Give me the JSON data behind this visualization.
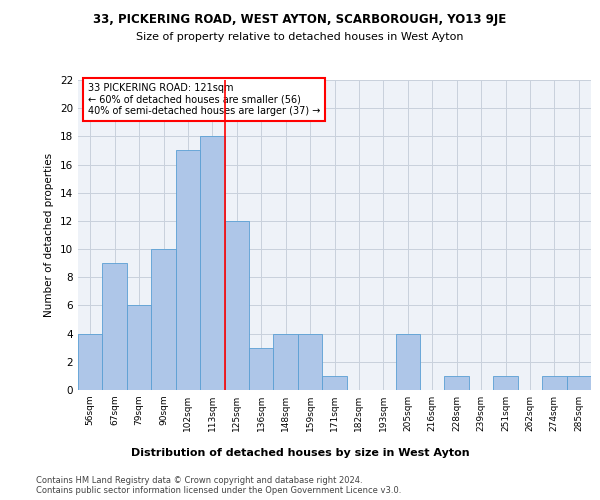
{
  "title1": "33, PICKERING ROAD, WEST AYTON, SCARBOROUGH, YO13 9JE",
  "title2": "Size of property relative to detached houses in West Ayton",
  "xlabel": "Distribution of detached houses by size in West Ayton",
  "ylabel": "Number of detached properties",
  "categories": [
    "56sqm",
    "67sqm",
    "79sqm",
    "90sqm",
    "102sqm",
    "113sqm",
    "125sqm",
    "136sqm",
    "148sqm",
    "159sqm",
    "171sqm",
    "182sqm",
    "193sqm",
    "205sqm",
    "216sqm",
    "228sqm",
    "239sqm",
    "251sqm",
    "262sqm",
    "274sqm",
    "285sqm"
  ],
  "values": [
    4,
    9,
    6,
    10,
    17,
    18,
    12,
    3,
    4,
    4,
    1,
    0,
    0,
    4,
    0,
    1,
    0,
    1,
    0,
    1,
    1
  ],
  "bar_color": "#aec6e8",
  "bar_edge_color": "#5a9fd4",
  "vline_pos": 5.5,
  "vline_color": "red",
  "annotation_text": "33 PICKERING ROAD: 121sqm\n← 60% of detached houses are smaller (56)\n40% of semi-detached houses are larger (37) →",
  "annotation_box_color": "white",
  "annotation_box_edge": "red",
  "ylim": [
    0,
    22
  ],
  "yticks": [
    0,
    2,
    4,
    6,
    8,
    10,
    12,
    14,
    16,
    18,
    20,
    22
  ],
  "footer": "Contains HM Land Registry data © Crown copyright and database right 2024.\nContains public sector information licensed under the Open Government Licence v3.0.",
  "bg_color": "#eef2f8",
  "grid_color": "#c8d0dc"
}
